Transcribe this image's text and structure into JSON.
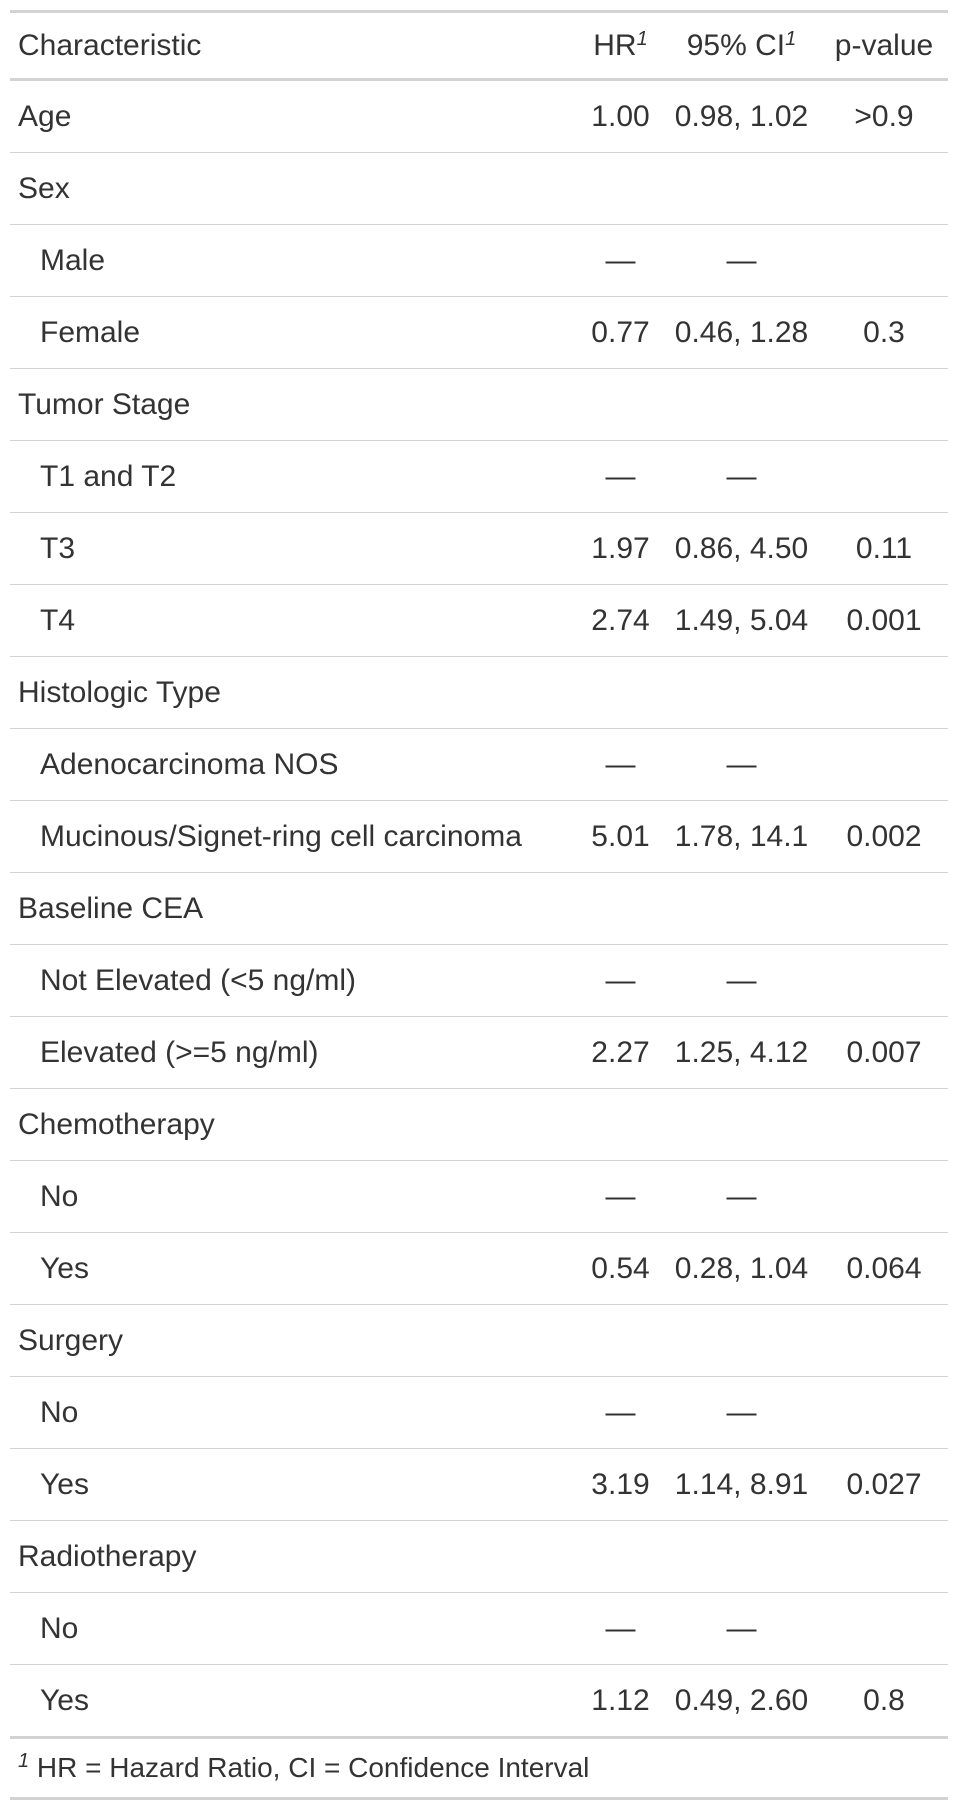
{
  "table": {
    "headers": {
      "characteristic": "Characteristic",
      "hr": "HR",
      "hr_footnote": "1",
      "ci": "95% CI",
      "ci_footnote": "1",
      "p": "p-value"
    },
    "rows": [
      {
        "type": "variable",
        "label": "Age",
        "hr": "1.00",
        "ci": "0.98, 1.02",
        "p": ">0.9"
      },
      {
        "type": "variable",
        "label": "Sex",
        "hr": "",
        "ci": "",
        "p": ""
      },
      {
        "type": "level",
        "label": "Male",
        "hr": "—",
        "ci": "—",
        "p": ""
      },
      {
        "type": "level",
        "label": "Female",
        "hr": "0.77",
        "ci": "0.46, 1.28",
        "p": "0.3"
      },
      {
        "type": "variable",
        "label": "Tumor Stage",
        "hr": "",
        "ci": "",
        "p": ""
      },
      {
        "type": "level",
        "label": "T1 and T2",
        "hr": "—",
        "ci": "—",
        "p": ""
      },
      {
        "type": "level",
        "label": "T3",
        "hr": "1.97",
        "ci": "0.86, 4.50",
        "p": "0.11"
      },
      {
        "type": "level",
        "label": "T4",
        "hr": "2.74",
        "ci": "1.49, 5.04",
        "p": "0.001"
      },
      {
        "type": "variable",
        "label": "Histologic Type",
        "hr": "",
        "ci": "",
        "p": ""
      },
      {
        "type": "level",
        "label": "Adenocarcinoma NOS",
        "hr": "—",
        "ci": "—",
        "p": ""
      },
      {
        "type": "level",
        "label": "Mucinous/Signet-ring cell carcinoma",
        "hr": "5.01",
        "ci": "1.78, 14.1",
        "p": "0.002"
      },
      {
        "type": "variable",
        "label": "Baseline CEA",
        "hr": "",
        "ci": "",
        "p": ""
      },
      {
        "type": "level",
        "label": "Not Elevated (<5 ng/ml)",
        "hr": "—",
        "ci": "—",
        "p": ""
      },
      {
        "type": "level",
        "label": "Elevated (>=5 ng/ml)",
        "hr": "2.27",
        "ci": "1.25, 4.12",
        "p": "0.007"
      },
      {
        "type": "variable",
        "label": "Chemotherapy",
        "hr": "",
        "ci": "",
        "p": ""
      },
      {
        "type": "level",
        "label": "No",
        "hr": "—",
        "ci": "—",
        "p": ""
      },
      {
        "type": "level",
        "label": "Yes",
        "hr": "0.54",
        "ci": "0.28, 1.04",
        "p": "0.064"
      },
      {
        "type": "variable",
        "label": "Surgery",
        "hr": "",
        "ci": "",
        "p": ""
      },
      {
        "type": "level",
        "label": "No",
        "hr": "—",
        "ci": "—",
        "p": ""
      },
      {
        "type": "level",
        "label": "Yes",
        "hr": "3.19",
        "ci": "1.14, 8.91",
        "p": "0.027"
      },
      {
        "type": "variable",
        "label": "Radiotherapy",
        "hr": "",
        "ci": "",
        "p": ""
      },
      {
        "type": "level",
        "label": "No",
        "hr": "—",
        "ci": "—",
        "p": ""
      },
      {
        "type": "level",
        "label": "Yes",
        "hr": "1.12",
        "ci": "0.49, 2.60",
        "p": "0.8"
      }
    ],
    "footnote": {
      "mark": "1",
      "text": "HR = Hazard Ratio, CI = Confidence Interval"
    }
  }
}
